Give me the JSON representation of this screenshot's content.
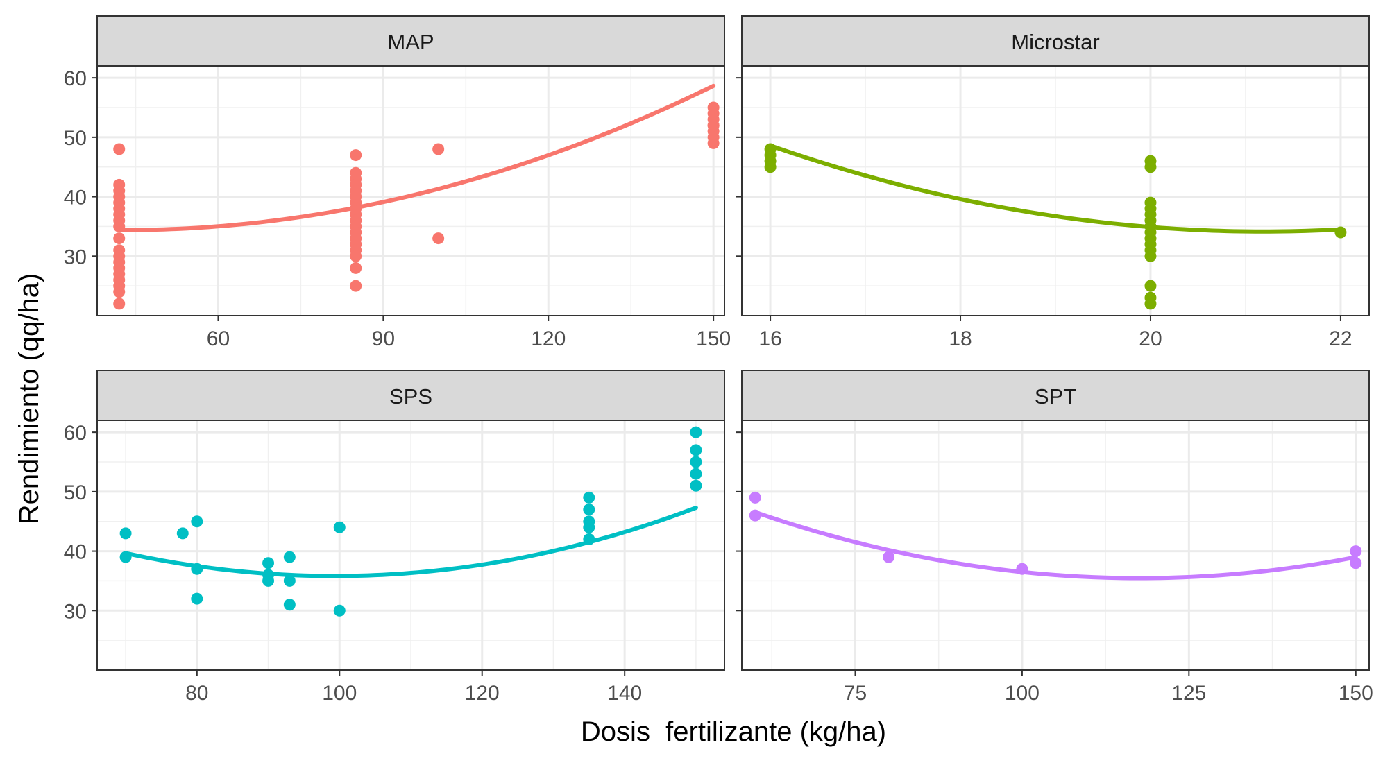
{
  "figure": {
    "xlabel": "Dosis  fertilizante (kg/ha)",
    "ylabel": "Rendimiento (qq/ha)"
  },
  "chart_data": [
    {
      "type": "scatter",
      "title": "MAP",
      "color": "#F8766D",
      "xlim": [
        38,
        152
      ],
      "ylim": [
        20,
        62
      ],
      "xticks": [
        60,
        90,
        120,
        150
      ],
      "xtick_labels": [
        "60",
        "90",
        "120",
        "150"
      ],
      "yticks": [
        30,
        40,
        50,
        60
      ],
      "ytick_labels": [
        "30",
        "40",
        "50",
        "60"
      ],
      "show_y_labels": true,
      "points": {
        "x": [
          42,
          42,
          42,
          42,
          42,
          42,
          42,
          42,
          42,
          42,
          42,
          42,
          42,
          42,
          42,
          42,
          42,
          42,
          42,
          85,
          85,
          85,
          85,
          85,
          85,
          85,
          85,
          85,
          85,
          85,
          85,
          85,
          85,
          85,
          85,
          85,
          85,
          100,
          100,
          150,
          150,
          150,
          150,
          150,
          150,
          150,
          150
        ],
        "y": [
          48,
          42,
          41,
          39,
          38,
          37,
          35,
          31,
          30,
          28,
          27,
          26,
          25,
          24,
          22,
          40,
          36,
          29,
          33,
          47,
          44,
          43,
          42,
          41,
          39,
          37,
          36,
          35,
          34,
          33,
          32,
          31,
          28,
          25,
          38,
          40,
          30,
          48,
          33,
          55,
          54,
          53,
          52,
          51,
          50,
          49,
          52
        ]
      },
      "fit": {
        "a": 0.002103,
        "b": -0.1792,
        "c": 38.2
      }
    },
    {
      "type": "scatter",
      "title": "Microstar",
      "color": "#7CAE00",
      "xlim": [
        15.7,
        22.3
      ],
      "ylim": [
        20,
        62
      ],
      "xticks": [
        16,
        18,
        20,
        22
      ],
      "xtick_labels": [
        "16",
        "18",
        "20",
        "22"
      ],
      "yticks": [
        30,
        40,
        50,
        60
      ],
      "ytick_labels": [
        "30",
        "40",
        "50",
        "60"
      ],
      "show_y_labels": false,
      "points": {
        "x": [
          16,
          16,
          16,
          16,
          20,
          20,
          20,
          20,
          20,
          20,
          20,
          20,
          20,
          20,
          20,
          20,
          20,
          20,
          20,
          22
        ],
        "y": [
          48,
          47,
          46,
          45,
          46,
          45,
          39,
          38,
          37,
          36,
          35,
          34,
          33,
          32,
          31,
          25,
          23,
          22,
          30,
          34
        ]
      },
      "fit": {
        "a": 0.5375,
        "b": -22.775,
        "c": 275.4
      }
    },
    {
      "type": "scatter",
      "title": "SPS",
      "color": "#00BFC4",
      "xlim": [
        66,
        154
      ],
      "ylim": [
        20,
        62
      ],
      "xticks": [
        80,
        100,
        120,
        140
      ],
      "xtick_labels": [
        "80",
        "100",
        "120",
        "140"
      ],
      "yticks": [
        30,
        40,
        50,
        60
      ],
      "ytick_labels": [
        "30",
        "40",
        "50",
        "60"
      ],
      "show_y_labels": true,
      "points": {
        "x": [
          70,
          70,
          78,
          80,
          80,
          80,
          90,
          90,
          90,
          93,
          93,
          93,
          100,
          100,
          135,
          135,
          135,
          135,
          135,
          150,
          150,
          150,
          150,
          150
        ],
        "y": [
          43,
          39,
          43,
          45,
          37,
          32,
          38,
          36,
          35,
          39,
          35,
          31,
          44,
          30,
          49,
          47,
          45,
          44,
          42,
          60,
          57,
          55,
          53,
          51
        ]
      },
      "fit": {
        "a": 0.004469,
        "b": -0.8877,
        "c": 79.9
      }
    },
    {
      "type": "scatter",
      "title": "SPT",
      "color": "#C77CFF",
      "xlim": [
        58,
        152
      ],
      "ylim": [
        20,
        62
      ],
      "xticks": [
        75,
        100,
        125,
        150
      ],
      "xtick_labels": [
        "75",
        "100",
        "125",
        "150"
      ],
      "yticks": [
        30,
        40,
        50,
        60
      ],
      "ytick_labels": [
        "30",
        "40",
        "50",
        "60"
      ],
      "show_y_labels": false,
      "points": {
        "x": [
          60,
          60,
          80,
          100,
          150,
          150
        ],
        "y": [
          49,
          46,
          39,
          37,
          40,
          38
        ]
      },
      "fit": {
        "a": 0.003349,
        "b": -0.7874,
        "c": 81.74
      }
    }
  ]
}
